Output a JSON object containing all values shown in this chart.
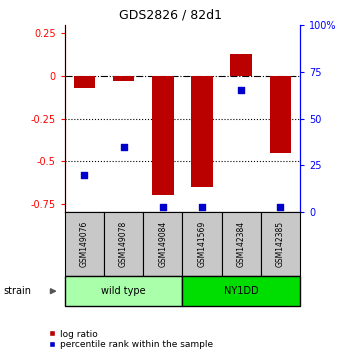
{
  "title": "GDS2826 / 82d1",
  "samples": [
    "GSM149076",
    "GSM149078",
    "GSM149084",
    "GSM141569",
    "GSM142384",
    "GSM142385"
  ],
  "log_ratio": [
    -0.07,
    -0.03,
    -0.7,
    -0.65,
    0.13,
    -0.45
  ],
  "percentile_rank": [
    20,
    35,
    3,
    3,
    65,
    3
  ],
  "groups": [
    {
      "label": "wild type",
      "indices": [
        0,
        1,
        2
      ],
      "color": "#AAFFAA"
    },
    {
      "label": "NY1DD",
      "indices": [
        3,
        4,
        5
      ],
      "color": "#00DD00"
    }
  ],
  "group_label": "strain",
  "ylim_left": [
    -0.8,
    0.3
  ],
  "ylim_right": [
    0,
    100
  ],
  "yticks_left": [
    0.25,
    0,
    -0.25,
    -0.5,
    -0.75
  ],
  "yticklabels_left": [
    "0.25",
    "0",
    "-0.25",
    "-0.5",
    "-0.75"
  ],
  "yticks_right": [
    100,
    75,
    50,
    25,
    0
  ],
  "yticklabels_right": [
    "100%",
    "75",
    "50",
    "25",
    "0"
  ],
  "bar_color": "#BB0000",
  "scatter_color": "#0000CC",
  "dotted_lines": [
    -0.25,
    -0.5
  ],
  "bar_width": 0.55,
  "legend_labels": [
    "log ratio",
    "percentile rank within the sample"
  ]
}
